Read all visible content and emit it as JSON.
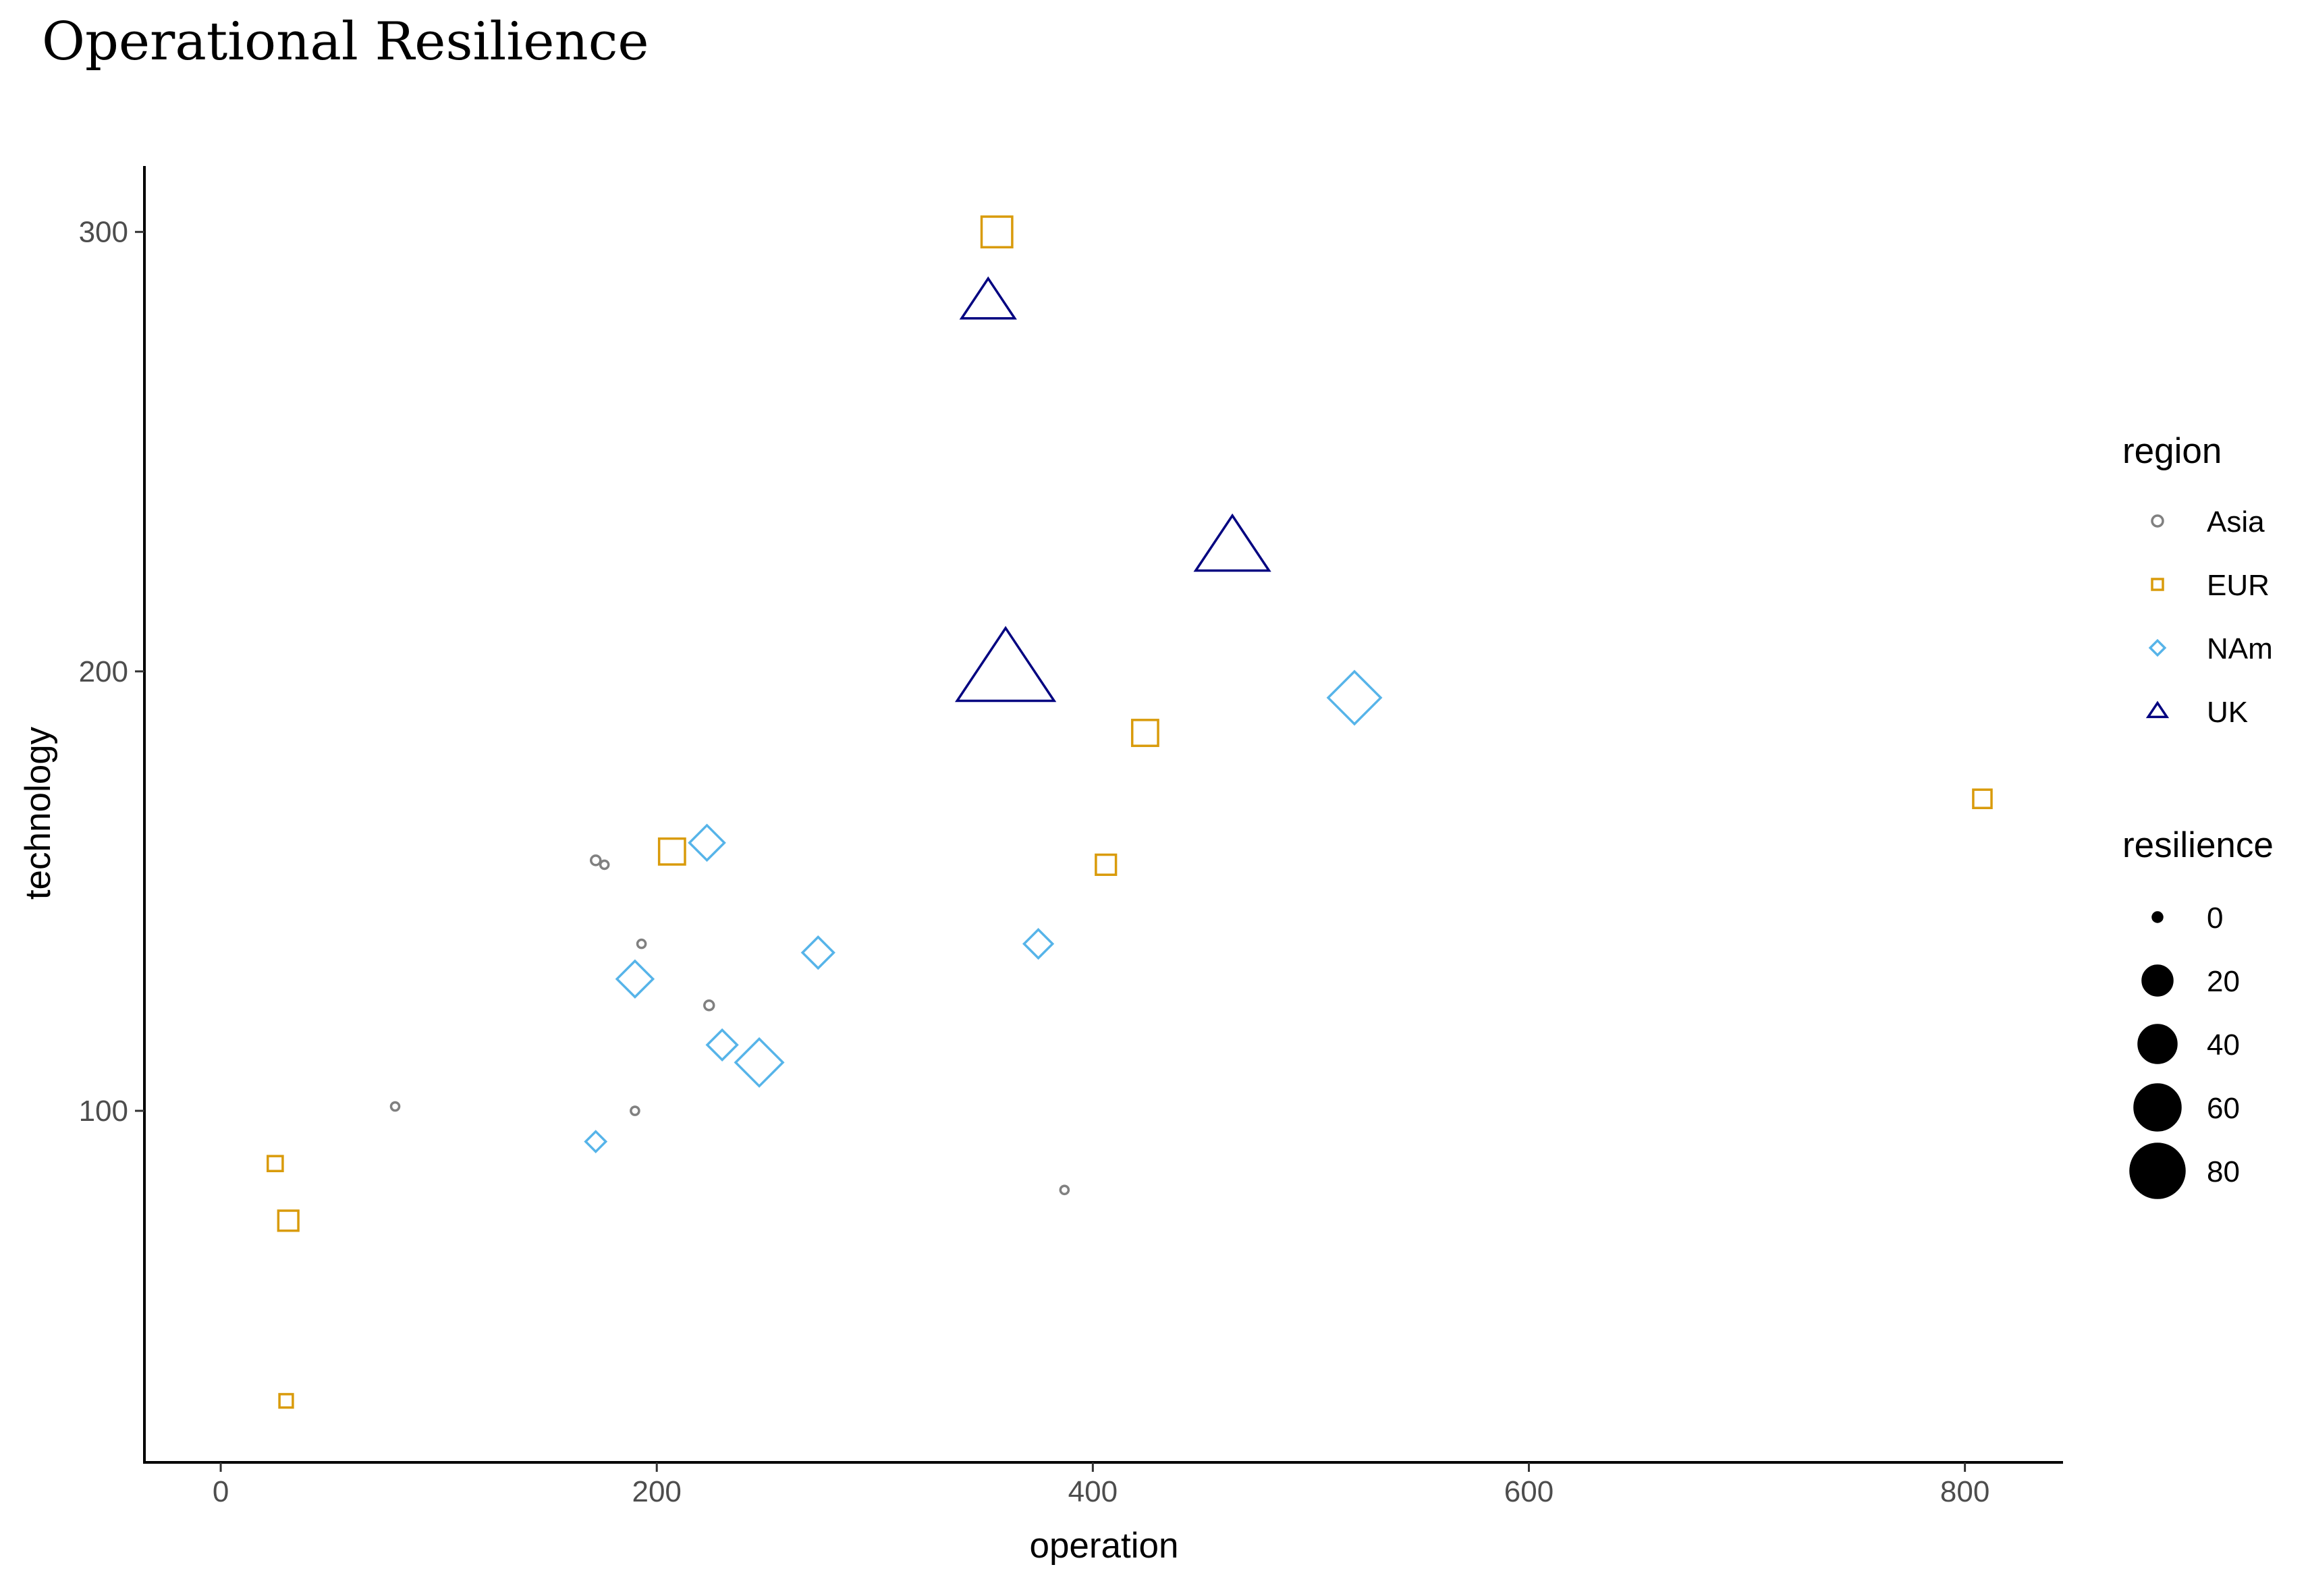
{
  "chart_data": {
    "type": "scatter",
    "title": "Operational Resilience",
    "xlabel": "operation",
    "ylabel": "technology",
    "xlim": [
      -35,
      845
    ],
    "ylim": [
      20,
      315
    ],
    "x_ticks": [
      0,
      200,
      400,
      600,
      800
    ],
    "y_ticks": [
      100,
      200,
      300
    ],
    "grid": false,
    "legend_position": "right",
    "color_legend": {
      "title": "region",
      "items": [
        {
          "label": "Asia",
          "shape": "circle",
          "color": "#808080"
        },
        {
          "label": "EUR",
          "shape": "square",
          "color": "#D99B0B"
        },
        {
          "label": "NAm",
          "shape": "diamond",
          "color": "#56B4E9"
        },
        {
          "label": "UK",
          "shape": "triangle",
          "color": "#000080"
        }
      ]
    },
    "size_legend": {
      "title": "resilience",
      "values": [
        0,
        20,
        40,
        60,
        80
      ]
    },
    "series": [
      {
        "name": "Asia",
        "points": [
          {
            "x": 80,
            "y": 101,
            "size": 3
          },
          {
            "x": 172,
            "y": 157,
            "size": 4
          },
          {
            "x": 176,
            "y": 156,
            "size": 3
          },
          {
            "x": 193,
            "y": 138,
            "size": 3
          },
          {
            "x": 190,
            "y": 100,
            "size": 3
          },
          {
            "x": 224,
            "y": 124,
            "size": 4
          },
          {
            "x": 387,
            "y": 82,
            "size": 3
          }
        ]
      },
      {
        "name": "EUR",
        "points": [
          {
            "x": 356,
            "y": 300,
            "size": 42
          },
          {
            "x": 25,
            "y": 88,
            "size": 10
          },
          {
            "x": 31,
            "y": 75,
            "size": 18
          },
          {
            "x": 30,
            "y": 34,
            "size": 8
          },
          {
            "x": 207,
            "y": 159,
            "size": 30
          },
          {
            "x": 424,
            "y": 186,
            "size": 30
          },
          {
            "x": 406,
            "y": 156,
            "size": 18
          },
          {
            "x": 808,
            "y": 171,
            "size": 15
          }
        ]
      },
      {
        "name": "NAm",
        "points": [
          {
            "x": 223,
            "y": 161,
            "size": 30
          },
          {
            "x": 190,
            "y": 130,
            "size": 32
          },
          {
            "x": 274,
            "y": 136,
            "size": 24
          },
          {
            "x": 230,
            "y": 115,
            "size": 22
          },
          {
            "x": 247,
            "y": 111,
            "size": 55
          },
          {
            "x": 172,
            "y": 93,
            "size": 10
          },
          {
            "x": 375,
            "y": 138,
            "size": 20
          },
          {
            "x": 520,
            "y": 194,
            "size": 68
          }
        ]
      },
      {
        "name": "UK",
        "points": [
          {
            "x": 352,
            "y": 284,
            "size": 42
          },
          {
            "x": 464,
            "y": 228,
            "size": 80
          },
          {
            "x": 360,
            "y": 200,
            "size": 140
          }
        ]
      }
    ]
  }
}
